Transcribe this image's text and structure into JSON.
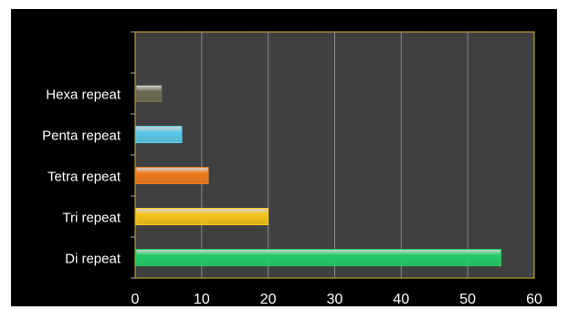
{
  "chart_data": {
    "type": "bar",
    "orientation": "horizontal",
    "categories": [
      "Di repeat",
      "Tri repeat",
      "Tetra repeat",
      "Penta repeat",
      "Hexa repeat"
    ],
    "values": [
      55,
      20,
      11,
      7,
      4
    ],
    "xlim": [
      0,
      60
    ],
    "x_ticks": [
      "0",
      "10",
      "20",
      "30",
      "40",
      "50",
      "60"
    ],
    "grid": true,
    "legend": "none",
    "colors": {
      "bars": [
        "#22cc66",
        "#f5c518",
        "#f07a1a",
        "#5ac8e8",
        "#6e6a52"
      ],
      "plot_background": "#404040",
      "plot_border": "#b89a2a",
      "gridline": "#8a8a8a",
      "page_background": "#000000",
      "text": "#ffffff"
    }
  }
}
